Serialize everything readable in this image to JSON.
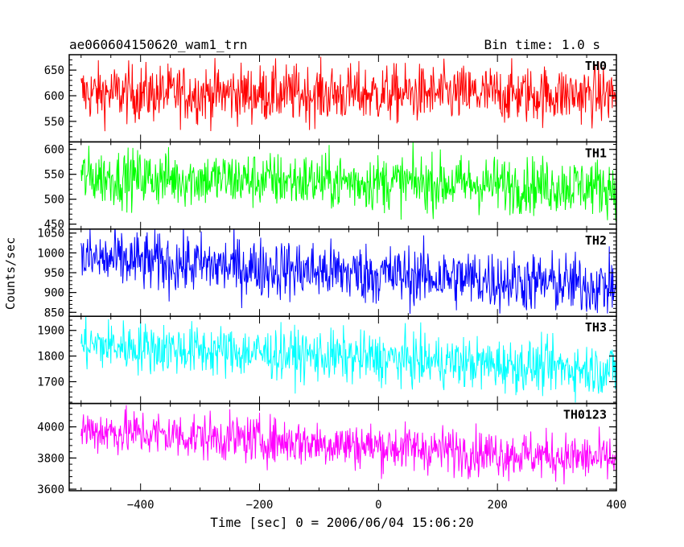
{
  "chart_data": {
    "type": "line",
    "title": "ae060604150620_wam1_trn",
    "subtitle": "Bin time: 1.0 s",
    "xlabel": "Time [sec] 0 = 2006/06/04 15:06:20",
    "ylabel": "Counts/sec",
    "xlim": [
      -520,
      400
    ],
    "x_ticks": [
      -400,
      -200,
      0,
      200,
      400
    ],
    "x_range": [
      -500,
      400
    ],
    "panels": [
      {
        "name": "TH0",
        "color": "#ff0000",
        "ylim": [
          510,
          680
        ],
        "y_ticks": [
          550,
          600,
          650
        ],
        "mean_start": 605,
        "mean_end": 602,
        "amplitude": 28
      },
      {
        "name": "TH1",
        "color": "#00ff00",
        "ylim": [
          440,
          615
        ],
        "y_ticks": [
          450,
          500,
          550,
          600
        ],
        "mean_start": 545,
        "mean_end": 525,
        "amplitude": 28
      },
      {
        "name": "TH2",
        "color": "#0000ff",
        "ylim": [
          840,
          1060
        ],
        "y_ticks": [
          850,
          900,
          950,
          1000,
          1050
        ],
        "mean_start": 985,
        "mean_end": 915,
        "amplitude": 38
      },
      {
        "name": "TH3",
        "color": "#00ffff",
        "ylim": [
          1615,
          1955
        ],
        "y_ticks": [
          1700,
          1800,
          1900
        ],
        "mean_start": 1845,
        "mean_end": 1745,
        "amplitude": 50
      },
      {
        "name": "TH0123",
        "color": "#ff00ff",
        "ylim": [
          3590,
          4150
        ],
        "y_ticks": [
          3600,
          3800,
          4000
        ],
        "mean_start": 3980,
        "mean_end": 3790,
        "amplitude": 75
      }
    ]
  }
}
